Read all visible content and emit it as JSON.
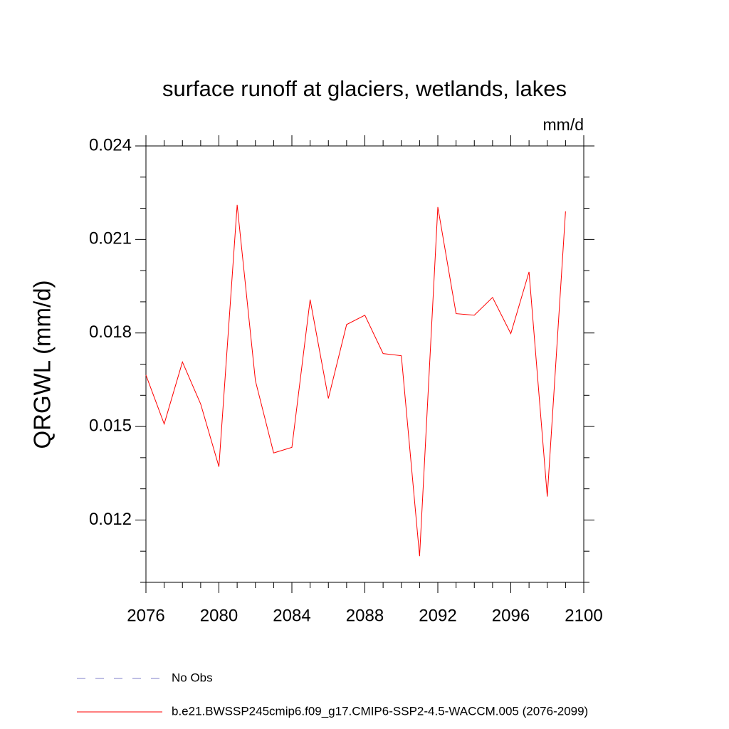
{
  "chart_data": {
    "type": "line",
    "title": "surface runoff at glaciers, wetlands, lakes",
    "units_label": "mm/d",
    "y_label": "QRGWL  (mm/d)",
    "x": [
      2076,
      2077,
      2078,
      2079,
      2080,
      2081,
      2082,
      2083,
      2084,
      2085,
      2086,
      2087,
      2088,
      2089,
      2090,
      2091,
      2092,
      2093,
      2094,
      2095,
      2096,
      2097,
      2098,
      2099
    ],
    "series": [
      {
        "name": "No Obs",
        "color": "#7f7fc8",
        "dashed": true,
        "values": [
          null,
          null,
          null,
          null,
          null,
          null,
          null,
          null,
          null,
          null,
          null,
          null,
          null,
          null,
          null,
          null,
          null,
          null,
          null,
          null,
          null,
          null,
          null,
          null
        ]
      },
      {
        "name": "b.e21.BWSSP245cmip6.f09_g17.CMIP6-SSP2-4.5-WACCM.005 (2076-2099)",
        "color": "#ff0000",
        "dashed": false,
        "values": [
          0.01665,
          0.01508,
          0.01707,
          0.01572,
          0.01371,
          0.02211,
          0.01647,
          0.01415,
          0.01433,
          0.01907,
          0.0159,
          0.01827,
          0.01857,
          0.01734,
          0.01727,
          0.01084,
          0.02204,
          0.01862,
          0.01857,
          0.01914,
          0.01798,
          0.01996,
          0.01275,
          0.0219
        ]
      }
    ],
    "xlim": [
      2076,
      2100
    ],
    "xticks": [
      2076,
      2080,
      2084,
      2088,
      2092,
      2096,
      2100
    ],
    "xminorticks": [
      2077,
      2078,
      2079,
      2081,
      2082,
      2083,
      2085,
      2086,
      2087,
      2089,
      2090,
      2091,
      2093,
      2094,
      2095,
      2097,
      2098,
      2099
    ],
    "ylim": [
      0.01,
      0.024
    ],
    "yticks": [
      0.012,
      0.015,
      0.018,
      0.021,
      0.024
    ],
    "yminorticks": [
      0.01,
      0.011,
      0.013,
      0.014,
      0.016,
      0.017,
      0.019,
      0.02,
      0.022,
      0.023
    ],
    "grid": false
  }
}
